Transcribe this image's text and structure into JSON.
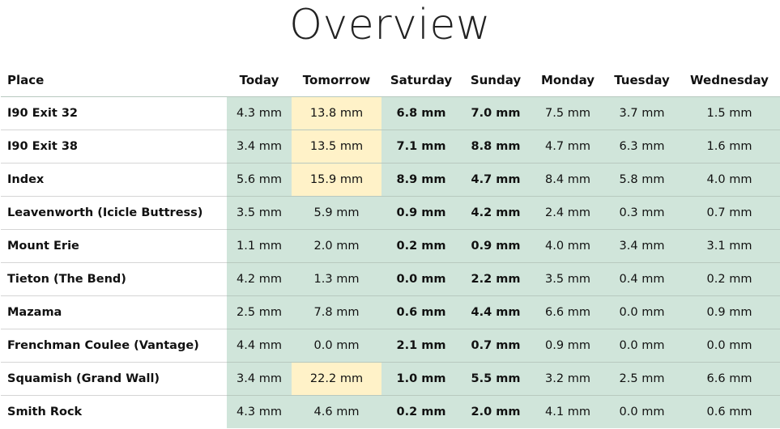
{
  "title": "Overview",
  "table": {
    "headers": [
      "Place",
      "Today",
      "Tomorrow",
      "Saturday",
      "Sunday",
      "Monday",
      "Tuesday",
      "Wednesday"
    ],
    "bold_columns": [
      3,
      4
    ],
    "rows": [
      {
        "place": "I90 Exit 32",
        "values": [
          "4.3 mm",
          "13.8 mm",
          "6.8 mm",
          "7.0 mm",
          "7.5 mm",
          "3.7 mm",
          "1.5 mm"
        ],
        "highlight": [
          1
        ]
      },
      {
        "place": "I90 Exit 38",
        "values": [
          "3.4 mm",
          "13.5 mm",
          "7.1 mm",
          "8.8 mm",
          "4.7 mm",
          "6.3 mm",
          "1.6 mm"
        ],
        "highlight": [
          1
        ]
      },
      {
        "place": "Index",
        "values": [
          "5.6 mm",
          "15.9 mm",
          "8.9 mm",
          "4.7 mm",
          "8.4 mm",
          "5.8 mm",
          "4.0 mm"
        ],
        "highlight": [
          1
        ]
      },
      {
        "place": "Leavenworth (Icicle Buttress)",
        "values": [
          "3.5 mm",
          "5.9 mm",
          "0.9 mm",
          "4.2 mm",
          "2.4 mm",
          "0.3 mm",
          "0.7 mm"
        ],
        "highlight": [
          1
        ]
      },
      {
        "place": "Mount Erie",
        "values": [
          "1.1 mm",
          "2.0 mm",
          "0.2 mm",
          "0.9 mm",
          "4.0 mm",
          "3.4 mm",
          "3.1 mm"
        ],
        "highlight": [
          1
        ]
      },
      {
        "place": "Tieton (The Bend)",
        "values": [
          "4.2 mm",
          "1.3 mm",
          "0.0 mm",
          "2.2 mm",
          "3.5 mm",
          "0.4 mm",
          "0.2 mm"
        ],
        "highlight": [
          1
        ]
      },
      {
        "place": "Mazama",
        "values": [
          "2.5 mm",
          "7.8 mm",
          "0.6 mm",
          "4.4 mm",
          "6.6 mm",
          "0.0 mm",
          "0.9 mm"
        ],
        "highlight": [
          1
        ]
      },
      {
        "place": "Frenchman Coulee (Vantage)",
        "values": [
          "4.4 mm",
          "0.0 mm",
          "2.1 mm",
          "0.7 mm",
          "0.9 mm",
          "0.0 mm",
          "0.0 mm"
        ],
        "highlight": [
          1
        ]
      },
      {
        "place": "Squamish (Grand Wall)",
        "values": [
          "3.4 mm",
          "22.2 mm",
          "1.0 mm",
          "5.5 mm",
          "3.2 mm",
          "2.5 mm",
          "6.6 mm"
        ],
        "highlight": [
          1
        ]
      },
      {
        "place": "Smith Rock",
        "values": [
          "4.3 mm",
          "4.6 mm",
          "0.2 mm",
          "2.0 mm",
          "4.1 mm",
          "0.0 mm",
          "0.6 mm"
        ],
        "highlight": [
          1
        ]
      }
    ]
  },
  "colors": {
    "cell_background": "#d0e5da",
    "highlight_background": "#fff2c8",
    "highlighted_cells": [
      [
        0,
        1
      ],
      [
        1,
        1
      ],
      [
        2,
        1
      ],
      [
        8,
        1
      ]
    ]
  }
}
